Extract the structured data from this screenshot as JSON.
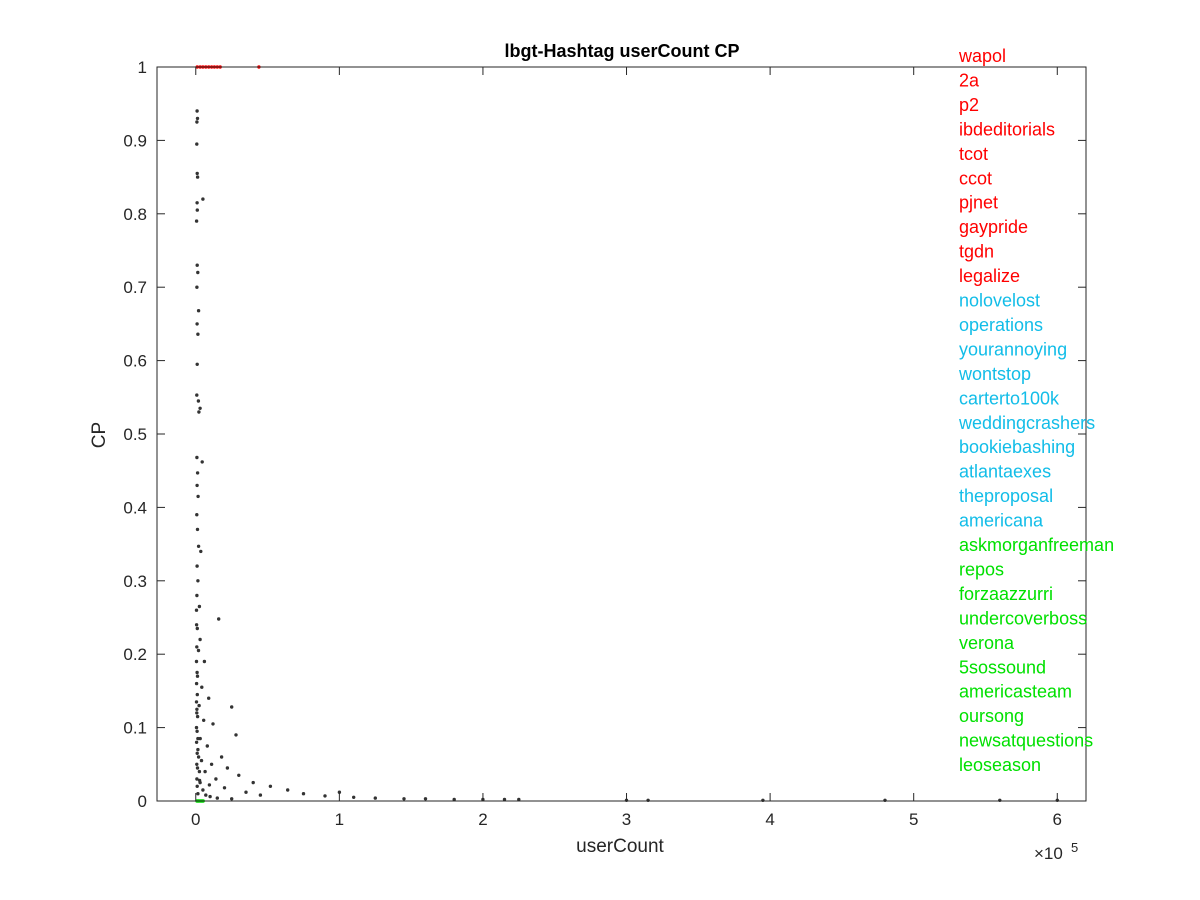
{
  "chart_data": {
    "type": "scatter",
    "title": "lbgt-Hashtag userCount CP",
    "xlabel": "userCount",
    "ylabel": "CP",
    "x_exponent_label": "×10",
    "x_exponent_power": "5",
    "xlim": [
      -27000,
      620000
    ],
    "ylim": [
      0,
      1
    ],
    "x_ticks": [
      0,
      100000,
      200000,
      300000,
      400000,
      500000,
      600000
    ],
    "x_tick_labels": [
      "0",
      "1",
      "2",
      "3",
      "4",
      "5",
      "6"
    ],
    "y_ticks": [
      0,
      0.1,
      0.2,
      0.3,
      0.4,
      0.5,
      0.6,
      0.7,
      0.8,
      0.9,
      1
    ],
    "y_tick_labels": [
      "0",
      "0.1",
      "0.2",
      "0.3",
      "0.4",
      "0.5",
      "0.6",
      "0.7",
      "0.8",
      "0.9",
      "1"
    ],
    "grid": false,
    "colors": {
      "default": "#333333",
      "top": "#ff0000",
      "middle": "#12bde8",
      "bottom": "#00e000"
    },
    "series": [
      {
        "group": "default",
        "points": [
          [
            900,
            0.94
          ],
          [
            800,
            0.925
          ],
          [
            1200,
            0.93
          ],
          [
            700,
            0.895
          ],
          [
            1000,
            0.855
          ],
          [
            1300,
            0.85
          ],
          [
            900,
            0.815
          ],
          [
            1100,
            0.805
          ],
          [
            600,
            0.79
          ],
          [
            5000,
            0.82
          ],
          [
            1000,
            0.73
          ],
          [
            1400,
            0.72
          ],
          [
            800,
            0.7
          ],
          [
            2000,
            0.668
          ],
          [
            900,
            0.65
          ],
          [
            1500,
            0.636
          ],
          [
            1000,
            0.595
          ],
          [
            700,
            0.553
          ],
          [
            1800,
            0.545
          ],
          [
            3000,
            0.535
          ],
          [
            2200,
            0.53
          ],
          [
            800,
            0.468
          ],
          [
            4500,
            0.462
          ],
          [
            1300,
            0.447
          ],
          [
            900,
            0.43
          ],
          [
            1600,
            0.415
          ],
          [
            700,
            0.39
          ],
          [
            1200,
            0.37
          ],
          [
            2000,
            0.347
          ],
          [
            3500,
            0.34
          ],
          [
            900,
            0.32
          ],
          [
            1500,
            0.3
          ],
          [
            800,
            0.28
          ],
          [
            2500,
            0.265
          ],
          [
            16000,
            0.248
          ],
          [
            1100,
            0.235
          ],
          [
            3000,
            0.22
          ],
          [
            1900,
            0.205
          ],
          [
            6000,
            0.19
          ],
          [
            1200,
            0.17
          ],
          [
            4200,
            0.155
          ],
          [
            9000,
            0.14
          ],
          [
            2300,
            0.13
          ],
          [
            25000,
            0.128
          ],
          [
            700,
            0.12
          ],
          [
            5500,
            0.11
          ],
          [
            12000,
            0.105
          ],
          [
            28000,
            0.09
          ],
          [
            3100,
            0.085
          ],
          [
            8000,
            0.075
          ],
          [
            1500,
            0.07
          ],
          [
            18000,
            0.06
          ],
          [
            4000,
            0.055
          ],
          [
            11000,
            0.05
          ],
          [
            22000,
            0.045
          ],
          [
            6500,
            0.04
          ],
          [
            30000,
            0.035
          ],
          [
            14000,
            0.03
          ],
          [
            2700,
            0.028
          ],
          [
            40000,
            0.025
          ],
          [
            9500,
            0.022
          ],
          [
            52000,
            0.02
          ],
          [
            20000,
            0.018
          ],
          [
            64000,
            0.015
          ],
          [
            35000,
            0.012
          ],
          [
            75000,
            0.01
          ],
          [
            45000,
            0.008
          ],
          [
            90000,
            0.007
          ],
          [
            100000,
            0.012
          ],
          [
            110000,
            0.005
          ],
          [
            125000,
            0.004
          ],
          [
            145000,
            0.003
          ],
          [
            160000,
            0.003
          ],
          [
            180000,
            0.002
          ],
          [
            200000,
            0.002
          ],
          [
            215000,
            0.002
          ],
          [
            225000,
            0.002
          ],
          [
            300000,
            0.001
          ],
          [
            315000,
            0.001
          ],
          [
            395000,
            0.001
          ],
          [
            480000,
            0.001
          ],
          [
            560000,
            0.001
          ],
          [
            600000,
            0.001
          ],
          [
            500,
            0.26
          ],
          [
            600,
            0.24
          ],
          [
            700,
            0.21
          ],
          [
            500,
            0.19
          ],
          [
            900,
            0.175
          ],
          [
            600,
            0.16
          ],
          [
            1100,
            0.145
          ],
          [
            500,
            0.135
          ],
          [
            800,
            0.125
          ],
          [
            1300,
            0.115
          ],
          [
            500,
            0.1
          ],
          [
            900,
            0.095
          ],
          [
            1500,
            0.085
          ],
          [
            600,
            0.08
          ],
          [
            1000,
            0.065
          ],
          [
            2000,
            0.06
          ],
          [
            700,
            0.05
          ],
          [
            1200,
            0.045
          ],
          [
            2500,
            0.04
          ],
          [
            800,
            0.03
          ],
          [
            3000,
            0.025
          ],
          [
            1000,
            0.02
          ],
          [
            5000,
            0.015
          ],
          [
            1500,
            0.01
          ],
          [
            7000,
            0.008
          ],
          [
            10000,
            0.006
          ],
          [
            15000,
            0.004
          ],
          [
            25000,
            0.003
          ]
        ]
      },
      {
        "group": "top",
        "points": [
          [
            1000,
            1
          ],
          [
            3000,
            1
          ],
          [
            5000,
            1
          ],
          [
            7000,
            1
          ],
          [
            9000,
            1
          ],
          [
            11000,
            1
          ],
          [
            13000,
            1
          ],
          [
            15000,
            1
          ],
          [
            17000,
            1
          ],
          [
            44000,
            1
          ]
        ]
      },
      {
        "group": "bottom",
        "points": [
          [
            800,
            0
          ],
          [
            1500,
            0
          ],
          [
            2200,
            0
          ],
          [
            3000,
            0
          ],
          [
            3800,
            0
          ],
          [
            4500,
            0
          ],
          [
            5200,
            0
          ]
        ]
      }
    ],
    "labels": [
      {
        "text": "wapol",
        "group": "top"
      },
      {
        "text": "2a",
        "group": "top"
      },
      {
        "text": "p2",
        "group": "top"
      },
      {
        "text": "ibdeditorials",
        "group": "top"
      },
      {
        "text": "tcot",
        "group": "top"
      },
      {
        "text": "ccot",
        "group": "top"
      },
      {
        "text": "pjnet",
        "group": "top"
      },
      {
        "text": "gaypride",
        "group": "top"
      },
      {
        "text": "tgdn",
        "group": "top"
      },
      {
        "text": "legalize",
        "group": "top"
      },
      {
        "text": "nolovelost",
        "group": "middle"
      },
      {
        "text": "operations",
        "group": "middle"
      },
      {
        "text": "yourannoying",
        "group": "middle"
      },
      {
        "text": "wontstop",
        "group": "middle"
      },
      {
        "text": "carterto100k",
        "group": "middle"
      },
      {
        "text": "weddingcrashers",
        "group": "middle"
      },
      {
        "text": "bookiebashing",
        "group": "middle"
      },
      {
        "text": "atlantaexes",
        "group": "middle"
      },
      {
        "text": "theproposal",
        "group": "middle"
      },
      {
        "text": "americana",
        "group": "middle"
      },
      {
        "text": "askmorganfreeman",
        "group": "bottom"
      },
      {
        "text": "repos",
        "group": "bottom"
      },
      {
        "text": "forzaazzurri",
        "group": "bottom"
      },
      {
        "text": "undercoverboss",
        "group": "bottom"
      },
      {
        "text": "verona",
        "group": "bottom"
      },
      {
        "text": "5sossound",
        "group": "bottom"
      },
      {
        "text": "americasteam",
        "group": "bottom"
      },
      {
        "text": "oursong",
        "group": "bottom"
      },
      {
        "text": "newsatquestions",
        "group": "bottom"
      },
      {
        "text": "leoseason",
        "group": "bottom"
      }
    ]
  }
}
